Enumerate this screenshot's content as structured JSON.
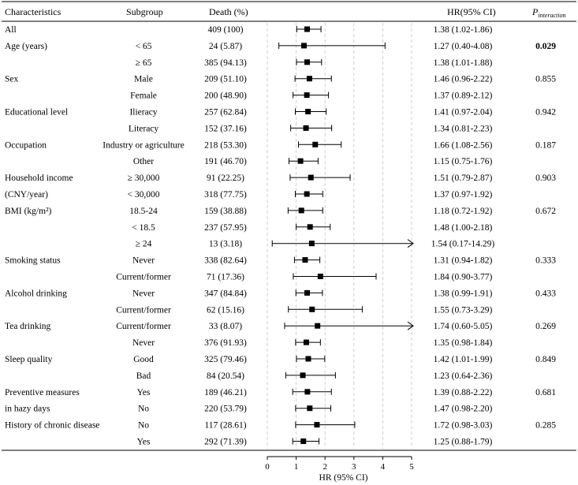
{
  "headers": {
    "characteristics": "Characteristics",
    "subgroup": "Subgroup",
    "death": "Death (%)",
    "hr": "HR(95% CI)",
    "p_main": "P",
    "p_sub": "interaction"
  },
  "chart_data": {
    "type": "forest",
    "xlabel": "HR (95% CI)",
    "xlim": [
      0,
      5
    ],
    "xticks": [
      0,
      1,
      2,
      3,
      4,
      5
    ],
    "reference_line": 1,
    "rows": [
      {
        "characteristic": "All",
        "subgroup": "",
        "death": "409 (100)",
        "hr": 1.38,
        "lo": 1.02,
        "hi": 1.86,
        "hr_text": "1.38 (1.02-1.86)",
        "p": ""
      },
      {
        "characteristic": "Age (years)",
        "subgroup": "< 65",
        "death": "24 (5.87)",
        "hr": 1.27,
        "lo": 0.4,
        "hi": 4.08,
        "hr_text": "1.27 (0.40-4.08)",
        "p": "0.029",
        "p_bold": true
      },
      {
        "characteristic": "",
        "subgroup": "≥ 65",
        "death": "385 (94.13)",
        "hr": 1.38,
        "lo": 1.01,
        "hi": 1.88,
        "hr_text": "1.38 (1.01-1.88)",
        "p": ""
      },
      {
        "characteristic": "Sex",
        "subgroup": "Male",
        "death": "209 (51.10)",
        "hr": 1.46,
        "lo": 0.96,
        "hi": 2.22,
        "hr_text": "1.46 (0.96-2.22)",
        "p": "0.855"
      },
      {
        "characteristic": "",
        "subgroup": "Female",
        "death": "200 (48.90)",
        "hr": 1.37,
        "lo": 0.89,
        "hi": 2.12,
        "hr_text": "1.37 (0.89-2.12)",
        "p": ""
      },
      {
        "characteristic": "Educational level",
        "subgroup": "Ilieracy",
        "death": "257 (62.84)",
        "hr": 1.41,
        "lo": 0.97,
        "hi": 2.04,
        "hr_text": "1.41 (0.97-2.04)",
        "p": "0.942"
      },
      {
        "characteristic": "",
        "subgroup": "Literacy",
        "death": "152 (37.16)",
        "hr": 1.34,
        "lo": 0.81,
        "hi": 2.23,
        "hr_text": "1.34 (0.81-2.23)",
        "p": ""
      },
      {
        "characteristic": "Occupation",
        "subgroup": "Industry or agriculture",
        "death": "218 (53.30)",
        "hr": 1.66,
        "lo": 1.08,
        "hi": 2.56,
        "hr_text": "1.66 (1.08-2.56)",
        "p": "0.187"
      },
      {
        "characteristic": "",
        "subgroup": "Other",
        "death": "191 (46.70)",
        "hr": 1.15,
        "lo": 0.75,
        "hi": 1.76,
        "hr_text": "1.15 (0.75-1.76)",
        "p": ""
      },
      {
        "characteristic": "Household income",
        "subgroup": "≥ 30,000",
        "death": "91 (22.25)",
        "hr": 1.51,
        "lo": 0.79,
        "hi": 2.87,
        "hr_text": "1.51 (0.79-2.87)",
        "p": "0.903"
      },
      {
        "characteristic": "(CNY/year)",
        "subgroup": "< 30,000",
        "death": "318 (77.75)",
        "hr": 1.37,
        "lo": 0.97,
        "hi": 1.92,
        "hr_text": "1.37 (0.97-1.92)",
        "p": ""
      },
      {
        "characteristic": "BMI (kg/m²)",
        "subgroup": "18.5-24",
        "death": "159 (38.88)",
        "hr": 1.18,
        "lo": 0.72,
        "hi": 1.92,
        "hr_text": "1.18 (0.72-1.92)",
        "p": "0.672"
      },
      {
        "characteristic": "",
        "subgroup": "< 18.5",
        "death": "237 (57.95)",
        "hr": 1.48,
        "lo": 1.0,
        "hi": 2.18,
        "hr_text": "1.48 (1.00-2.18)",
        "p": ""
      },
      {
        "characteristic": "",
        "subgroup": "≥ 24",
        "death": "13 (3.18)",
        "hr": 1.54,
        "lo": 0.17,
        "hi": 14.29,
        "hr_text": "1.54 (0.17-14.29)",
        "p": "",
        "arrow": true
      },
      {
        "characteristic": "Smoking status",
        "subgroup": "Never",
        "death": "338 (82.64)",
        "hr": 1.31,
        "lo": 0.94,
        "hi": 1.82,
        "hr_text": "1.31 (0.94-1.82)",
        "p": "0.333"
      },
      {
        "characteristic": "",
        "subgroup": "Current/former",
        "death": "71 (17.36)",
        "hr": 1.84,
        "lo": 0.9,
        "hi": 3.77,
        "hr_text": "1.84 (0.90-3.77)",
        "p": ""
      },
      {
        "characteristic": "Alcohol drinking",
        "subgroup": "Never",
        "death": "347 (84.84)",
        "hr": 1.38,
        "lo": 0.99,
        "hi": 1.91,
        "hr_text": "1.38 (0.99-1.91)",
        "p": "0.433"
      },
      {
        "characteristic": "",
        "subgroup": "Current/former",
        "death": "62 (15.16)",
        "hr": 1.55,
        "lo": 0.73,
        "hi": 3.29,
        "hr_text": "1.55 (0.73-3.29)",
        "p": ""
      },
      {
        "characteristic": "Tea drinking",
        "subgroup": "Current/former",
        "death": "33 (8.07)",
        "hr": 1.74,
        "lo": 0.6,
        "hi": 5.05,
        "hr_text": "1.74 (0.60-5.05)",
        "p": "0.269"
      },
      {
        "characteristic": "",
        "subgroup": "Never",
        "death": "376 (91.93)",
        "hr": 1.35,
        "lo": 0.98,
        "hi": 1.84,
        "hr_text": "1.35 (0.98-1.84)",
        "p": ""
      },
      {
        "characteristic": "Sleep quality",
        "subgroup": "Good",
        "death": "325 (79.46)",
        "hr": 1.42,
        "lo": 1.01,
        "hi": 1.99,
        "hr_text": "1.42 (1.01-1.99)",
        "p": "0.849"
      },
      {
        "characteristic": "",
        "subgroup": "Bad",
        "death": "84 (20.54)",
        "hr": 1.23,
        "lo": 0.64,
        "hi": 2.36,
        "hr_text": "1.23 (0.64-2.36)",
        "p": ""
      },
      {
        "characteristic": "Preventive measures",
        "subgroup": "Yes",
        "death": "189 (46.21)",
        "hr": 1.39,
        "lo": 0.88,
        "hi": 2.22,
        "hr_text": "1.39 (0.88-2.22)",
        "p": "0.681"
      },
      {
        "characteristic": "in hazy days",
        "subgroup": "No",
        "death": "220 (53.79)",
        "hr": 1.47,
        "lo": 0.98,
        "hi": 2.2,
        "hr_text": "1.47 (0.98-2.20)",
        "p": ""
      },
      {
        "characteristic": "History of chronic disease",
        "subgroup": "No",
        "death": "117 (28.61)",
        "hr": 1.72,
        "lo": 0.98,
        "hi": 3.03,
        "hr_text": "1.72 (0.98-3.03)",
        "p": "0.285"
      },
      {
        "characteristic": "",
        "subgroup": "Yes",
        "death": "292 (71.39)",
        "hr": 1.25,
        "lo": 0.88,
        "hi": 1.79,
        "hr_text": "1.25 (0.88-1.79)",
        "p": ""
      }
    ]
  }
}
